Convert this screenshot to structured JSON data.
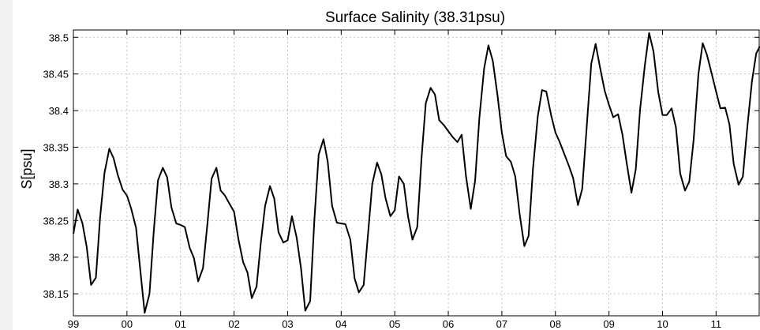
{
  "chart_data": {
    "type": "line",
    "title": "Surface Salinity (38.31psu)",
    "xlabel": "",
    "ylabel": "S[psu]",
    "x_ticks": [
      "99",
      "00",
      "01",
      "02",
      "03",
      "04",
      "05",
      "06",
      "07",
      "08",
      "09",
      "10",
      "11"
    ],
    "y_ticks": [
      "38.15",
      "38.2",
      "38.25",
      "38.3",
      "38.35",
      "38.4",
      "38.45",
      "38.5"
    ],
    "xlim": [
      1999.0,
      2011.82
    ],
    "ylim": [
      38.12,
      38.51
    ],
    "grid": true,
    "line_color": "#000000",
    "series": [
      {
        "x": [
          1999.0,
          1999.08,
          1999.17,
          1999.25,
          1999.33,
          1999.42,
          1999.5,
          1999.58,
          1999.67,
          1999.75,
          1999.83,
          1999.92,
          2000.0,
          2000.08,
          2000.17,
          2000.25,
          2000.33,
          2000.42,
          2000.5,
          2000.58,
          2000.67,
          2000.75,
          2000.83,
          2000.92,
          2001.0,
          2001.08,
          2001.17,
          2001.25,
          2001.33,
          2001.42,
          2001.5,
          2001.58,
          2001.67,
          2001.75,
          2001.83,
          2001.92,
          2002.0,
          2002.08,
          2002.17,
          2002.25,
          2002.33,
          2002.42,
          2002.5,
          2002.58,
          2002.67,
          2002.75,
          2002.83,
          2002.92,
          2003.0,
          2003.08,
          2003.17,
          2003.25,
          2003.33,
          2003.42,
          2003.5,
          2003.58,
          2003.67,
          2003.75,
          2003.83,
          2003.92,
          2004.0,
          2004.08,
          2004.17,
          2004.25,
          2004.33,
          2004.42,
          2004.5,
          2004.58,
          2004.67,
          2004.75,
          2004.83,
          2004.92,
          2005.0,
          2005.08,
          2005.17,
          2005.25,
          2005.33,
          2005.42,
          2005.5,
          2005.58,
          2005.67,
          2005.75,
          2005.83,
          2005.92,
          2006.0,
          2006.08,
          2006.17,
          2006.25,
          2006.33,
          2006.42,
          2006.5,
          2006.58,
          2006.67,
          2006.75,
          2006.83,
          2006.92,
          2007.0,
          2007.08,
          2007.17,
          2007.25,
          2007.33,
          2007.42,
          2007.5,
          2007.58,
          2007.67,
          2007.75,
          2007.83,
          2007.92,
          2008.0,
          2008.08,
          2008.17,
          2008.25,
          2008.33,
          2008.42,
          2008.5,
          2008.58,
          2008.67,
          2008.75,
          2008.83,
          2008.92,
          2009.0,
          2009.08,
          2009.17,
          2009.25,
          2009.33,
          2009.42,
          2009.5,
          2009.58,
          2009.67,
          2009.75,
          2009.83,
          2009.92,
          2010.0,
          2010.08,
          2010.17,
          2010.25,
          2010.33,
          2010.42,
          2010.5,
          2010.58,
          2010.67,
          2010.75,
          2010.83,
          2010.92,
          2011.0,
          2011.08,
          2011.17,
          2011.25,
          2011.33,
          2011.42,
          2011.5,
          2011.58,
          2011.67,
          2011.75,
          2011.82
        ],
        "y": [
          38.232,
          38.265,
          38.246,
          38.213,
          38.162,
          38.172,
          38.255,
          38.315,
          38.348,
          38.335,
          38.312,
          38.292,
          38.284,
          38.266,
          38.24,
          38.182,
          38.124,
          38.15,
          38.235,
          38.305,
          38.322,
          38.309,
          38.268,
          38.246,
          38.244,
          38.241,
          38.213,
          38.199,
          38.167,
          38.185,
          38.244,
          38.307,
          38.322,
          38.291,
          38.284,
          38.272,
          38.262,
          38.225,
          38.193,
          38.179,
          38.144,
          38.16,
          38.22,
          38.27,
          38.297,
          38.28,
          38.234,
          38.22,
          38.223,
          38.256,
          38.226,
          38.185,
          38.127,
          38.14,
          38.252,
          38.34,
          38.361,
          38.33,
          38.27,
          38.247,
          38.246,
          38.245,
          38.224,
          38.171,
          38.152,
          38.162,
          38.23,
          38.3,
          38.329,
          38.313,
          38.28,
          38.256,
          38.264,
          38.31,
          38.3,
          38.255,
          38.224,
          38.241,
          38.335,
          38.41,
          38.431,
          38.422,
          38.387,
          38.38,
          38.372,
          38.364,
          38.357,
          38.367,
          38.311,
          38.266,
          38.304,
          38.39,
          38.458,
          38.489,
          38.468,
          38.42,
          38.37,
          38.338,
          38.33,
          38.31,
          38.26,
          38.215,
          38.229,
          38.32,
          38.392,
          38.428,
          38.426,
          38.394,
          38.37,
          38.357,
          38.34,
          38.325,
          38.308,
          38.271,
          38.293,
          38.373,
          38.464,
          38.491,
          38.46,
          38.427,
          38.408,
          38.391,
          38.395,
          38.368,
          38.329,
          38.288,
          38.32,
          38.401,
          38.462,
          38.506,
          38.481,
          38.425,
          38.394,
          38.394,
          38.403,
          38.377,
          38.314,
          38.291,
          38.303,
          38.36,
          38.45,
          38.492,
          38.476,
          38.45,
          38.426,
          38.403,
          38.404,
          38.381,
          38.327,
          38.299,
          38.31,
          38.375,
          38.44,
          38.478,
          38.488
        ]
      }
    ]
  }
}
